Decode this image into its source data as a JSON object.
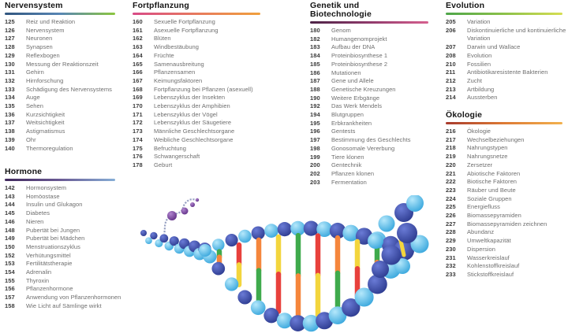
{
  "page": {
    "background": "#ffffff"
  },
  "sections": [
    {
      "id": "nervensystem",
      "title": "Nervensystem",
      "bar_colors": [
        "#31567f",
        "#5886b4",
        "#8cc63f"
      ],
      "items": [
        {
          "page": "125",
          "label": "Reiz und Reaktion"
        },
        {
          "page": "126",
          "label": "Nervensystem"
        },
        {
          "page": "127",
          "label": "Neuronen"
        },
        {
          "page": "128",
          "label": "Synapsen"
        },
        {
          "page": "129",
          "label": "Reflexbogen"
        },
        {
          "page": "130",
          "label": "Messung der Reaktionszeit"
        },
        {
          "page": "131",
          "label": "Gehirn"
        },
        {
          "page": "132",
          "label": "Hirnforschung"
        },
        {
          "page": "133",
          "label": "Schädigung des Nervensystems"
        },
        {
          "page": "134",
          "label": "Auge"
        },
        {
          "page": "135",
          "label": "Sehen"
        },
        {
          "page": "136",
          "label": "Kurzsichtigkeit"
        },
        {
          "page": "137",
          "label": "Weitsichtigkeit"
        },
        {
          "page": "138",
          "label": "Astigmatismus"
        },
        {
          "page": "139",
          "label": "Ohr"
        },
        {
          "page": "140",
          "label": "Thermoregulation"
        }
      ]
    },
    {
      "id": "hormone",
      "title": "Hormone",
      "bar_colors": [
        "#40285c",
        "#6a5a94",
        "#86aed6"
      ],
      "items": [
        {
          "page": "142",
          "label": "Hormonsystem"
        },
        {
          "page": "143",
          "label": "Homöostase"
        },
        {
          "page": "144",
          "label": "Insulin und Glukagon"
        },
        {
          "page": "145",
          "label": "Diabetes"
        },
        {
          "page": "146",
          "label": "Nieren"
        },
        {
          "page": "148",
          "label": "Pubertät bei Jungen"
        },
        {
          "page": "149",
          "label": "Pubertät bei Mädchen"
        },
        {
          "page": "150",
          "label": "Menstruationszyklus"
        },
        {
          "page": "152",
          "label": "Verhütungsmittel"
        },
        {
          "page": "153",
          "label": "Fertilitätstherapie"
        },
        {
          "page": "154",
          "label": "Adrenalin"
        },
        {
          "page": "155",
          "label": "Thyroxin"
        },
        {
          "page": "156",
          "label": "Pflanzenhormone"
        },
        {
          "page": "157",
          "label": "Anwendung von Pflanzenhormonen"
        },
        {
          "page": "158",
          "label": "Wie Licht auf Sämlinge wirkt"
        }
      ]
    },
    {
      "id": "fortpflanzung",
      "title": "Fortpflanzung",
      "bar_colors": [
        "#d84b87",
        "#e77a5e",
        "#f0a03d"
      ],
      "items": [
        {
          "page": "160",
          "label": "Sexuelle Fortpflanzung"
        },
        {
          "page": "161",
          "label": "Asexuelle Fortpflanzung"
        },
        {
          "page": "162",
          "label": "Blüten"
        },
        {
          "page": "163",
          "label": "Windbestäubung"
        },
        {
          "page": "164",
          "label": "Früchte"
        },
        {
          "page": "165",
          "label": "Samenausbreitung"
        },
        {
          "page": "166",
          "label": "Pflanzensamen"
        },
        {
          "page": "167",
          "label": "Keimungsfaktoren"
        },
        {
          "page": "168",
          "label": "Fortpflanzung bei Pflanzen (asexuell)"
        },
        {
          "page": "169",
          "label": "Lebenszyklus der Insekten"
        },
        {
          "page": "170",
          "label": "Lebenszyklus der Amphibien"
        },
        {
          "page": "171",
          "label": "Lebenszyklus der Vögel"
        },
        {
          "page": "172",
          "label": "Lebenszyklus der Säugetiere"
        },
        {
          "page": "173",
          "label": "Männliche Geschlechtsorgane"
        },
        {
          "page": "174",
          "label": "Weibliche Geschlechtsorgane"
        },
        {
          "page": "175",
          "label": "Befruchtung"
        },
        {
          "page": "176",
          "label": "Schwangerschaft"
        },
        {
          "page": "178",
          "label": "Geburt"
        }
      ]
    },
    {
      "id": "genetik",
      "title": "Genetik und\nBiotechnologie",
      "bar_colors": [
        "#4d2347",
        "#8f3a6b",
        "#d6608f"
      ],
      "items": [
        {
          "page": "180",
          "label": "Genom"
        },
        {
          "page": "182",
          "label": "Humangenomprojekt"
        },
        {
          "page": "183",
          "label": "Aufbau der DNA"
        },
        {
          "page": "184",
          "label": "Proteinbiosynthese 1"
        },
        {
          "page": "185",
          "label": "Proteinbiosynthese 2"
        },
        {
          "page": "186",
          "label": "Mutationen"
        },
        {
          "page": "187",
          "label": "Gene und Allele"
        },
        {
          "page": "188",
          "label": "Genetische Kreuzungen"
        },
        {
          "page": "190",
          "label": "Weitere Erbgänge"
        },
        {
          "page": "192",
          "label": "Das Werk Mendels"
        },
        {
          "page": "194",
          "label": "Blutgruppen"
        },
        {
          "page": "195",
          "label": "Erbkrankheiten"
        },
        {
          "page": "196",
          "label": "Gentests"
        },
        {
          "page": "197",
          "label": "Bestimmung des Geschlechts"
        },
        {
          "page": "198",
          "label": "Gonosomale Vererbung"
        },
        {
          "page": "199",
          "label": "Tiere klonen"
        },
        {
          "page": "200",
          "label": "Gentechnik"
        },
        {
          "page": "202",
          "label": "Pflanzen klonen"
        },
        {
          "page": "203",
          "label": "Fermentation"
        }
      ]
    },
    {
      "id": "evolution",
      "title": "Evolution",
      "bar_colors": [
        "#4ea64a",
        "#8cc14a",
        "#d6de52"
      ],
      "items": [
        {
          "page": "205",
          "label": "Variation"
        },
        {
          "page": "206",
          "label": "Diskontinuierliche und kontinuierliche Variation"
        },
        {
          "page": "207",
          "label": "Darwin und Wallace"
        },
        {
          "page": "208",
          "label": "Evolution"
        },
        {
          "page": "210",
          "label": "Fossilien"
        },
        {
          "page": "211",
          "label": "Antibiotikaresistente Bakterien"
        },
        {
          "page": "212",
          "label": "Zucht"
        },
        {
          "page": "213",
          "label": "Artbildung"
        },
        {
          "page": "214",
          "label": "Aussterben"
        }
      ]
    },
    {
      "id": "oekologie",
      "title": "Ökologie",
      "bar_colors": [
        "#a83b2d",
        "#dd7a34",
        "#f2b14e"
      ],
      "items": [
        {
          "page": "216",
          "label": "Ökologie"
        },
        {
          "page": "217",
          "label": "Wechselbeziehungen"
        },
        {
          "page": "218",
          "label": "Nahrungstypen"
        },
        {
          "page": "219",
          "label": "Nahrungsnetze"
        },
        {
          "page": "220",
          "label": "Zersetzer"
        },
        {
          "page": "221",
          "label": "Abiotische Faktoren"
        },
        {
          "page": "222",
          "label": "Biotische Faktoren"
        },
        {
          "page": "223",
          "label": "Räuber und Beute"
        },
        {
          "page": "224",
          "label": "Soziale Gruppen"
        },
        {
          "page": "225",
          "label": "Energiefluss"
        },
        {
          "page": "226",
          "label": "Biomassepyramiden"
        },
        {
          "page": "227",
          "label": "Biomassepyramiden zeichnen"
        },
        {
          "page": "228",
          "label": "Abundanz"
        },
        {
          "page": "229",
          "label": "Umweltkapazität"
        },
        {
          "page": "230",
          "label": "Dispersion"
        },
        {
          "page": "231",
          "label": "Wasserkreislauf"
        },
        {
          "page": "232",
          "label": "Kohlenstoffkreislauf"
        },
        {
          "page": "233",
          "label": "Stickstoffkreislauf"
        }
      ]
    }
  ],
  "illustration": {
    "name": "dna-double-helix-model",
    "backbone_colors": {
      "dark": "#2c3a8e",
      "light": "#35a5dc"
    },
    "base_pair_colors": [
      "#3faa4c",
      "#f5863c",
      "#e8413c",
      "#f3d53d"
    ],
    "mrna_bead_color": "#5f2e85",
    "mrna_strand_color": "#9aa3c4"
  }
}
